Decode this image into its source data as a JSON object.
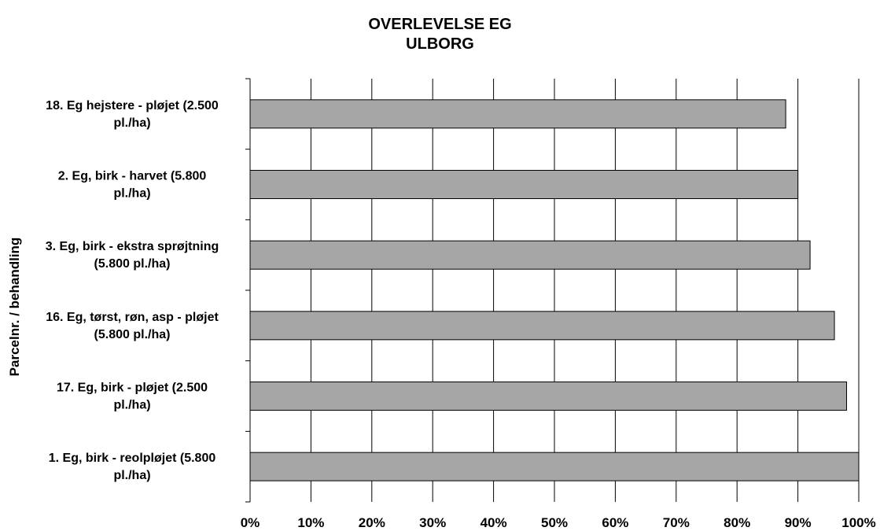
{
  "chart_data": {
    "type": "bar",
    "orientation": "horizontal",
    "title": "OVERLEVELSE EG",
    "subtitle": "ULBORG",
    "xlabel": "",
    "ylabel": "Parcelnr. / behandling",
    "xlim": [
      0,
      100
    ],
    "x_ticks": [
      "0%",
      "10%",
      "20%",
      "30%",
      "40%",
      "50%",
      "60%",
      "70%",
      "80%",
      "90%",
      "100%"
    ],
    "grid": "vertical",
    "categories": [
      [
        "18. Eg hejstere - pløjet (2.500",
        "pl./ha)"
      ],
      [
        "2. Eg, birk - harvet (5.800",
        "pl./ha)"
      ],
      [
        "3. Eg, birk - ekstra sprøjtning",
        "(5.800 pl./ha)"
      ],
      [
        "16. Eg, tørst, røn, asp - pløjet",
        "(5.800 pl./ha)"
      ],
      [
        "17. Eg, birk - pløjet (2.500",
        "pl./ha)"
      ],
      [
        "1. Eg, birk - reolpløjet (5.800",
        "pl./ha)"
      ]
    ],
    "values": [
      88,
      90,
      92,
      96,
      98,
      100
    ],
    "unit": "%",
    "bar_color": "#a6a6a6"
  }
}
